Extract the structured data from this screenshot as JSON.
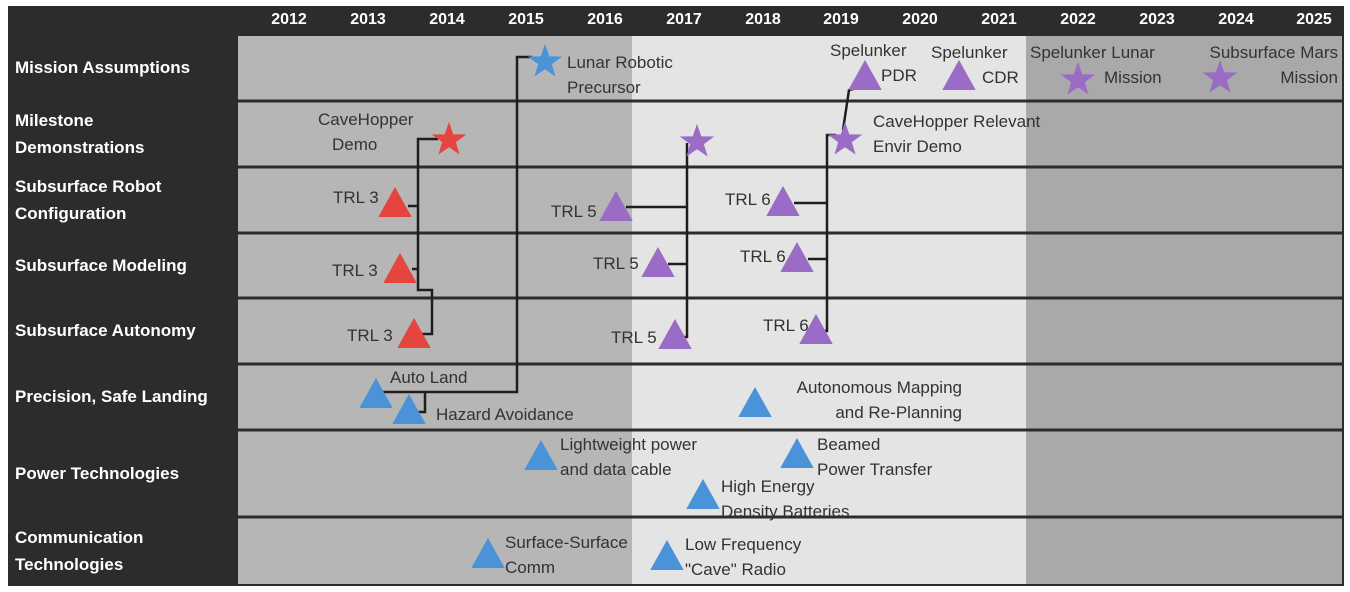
{
  "years": [
    "2012",
    "2013",
    "2014",
    "2015",
    "2016",
    "2017",
    "2018",
    "2019",
    "2020",
    "2021",
    "2022",
    "2023",
    "2024",
    "2025"
  ],
  "rows": [
    {
      "label_lines": [
        "Mission Assumptions"
      ]
    },
    {
      "label_lines": [
        "Milestone",
        "Demonstrations"
      ]
    },
    {
      "label_lines": [
        "Subsurface Robot",
        "Configuration"
      ]
    },
    {
      "label_lines": [
        "Subsurface Modeling"
      ]
    },
    {
      "label_lines": [
        "Subsurface Autonomy"
      ]
    },
    {
      "label_lines": [
        "Precision, Safe Landing"
      ]
    },
    {
      "label_lines": [
        "Power Technologies"
      ]
    },
    {
      "label_lines": [
        "Communication",
        "Technologies"
      ]
    }
  ],
  "mission": {
    "lunar_precursor": [
      "Lunar Robotic",
      "Precursor"
    ],
    "spelunker_pdr": [
      "Spelunker",
      "PDR"
    ],
    "spelunker_cdr": [
      "Spelunker",
      "CDR"
    ],
    "spelunker_lunar": [
      "Spelunker Lunar",
      "Mission"
    ],
    "subsurface_mars": [
      "Subsurface Mars",
      "Mission"
    ]
  },
  "milestones": {
    "cavehopper_demo": [
      "CaveHopper",
      "Demo"
    ],
    "cavehopper_relevant": [
      "CaveHopper Relevant",
      "Envir Demo"
    ]
  },
  "trl": {
    "config": [
      "TRL 3",
      "TRL 5",
      "TRL 6"
    ],
    "modeling": [
      "TRL 3",
      "TRL 5",
      "TRL 6"
    ],
    "autonomy": [
      "TRL 3",
      "TRL 5",
      "TRL 6"
    ]
  },
  "landing": {
    "auto_land": "Auto Land",
    "hazard": "Hazard Avoidance",
    "mapping": [
      "Autonomous Mapping",
      "and Re-Planning"
    ]
  },
  "power": {
    "cable": [
      "Lightweight power",
      "and data cable"
    ],
    "beamed": [
      "Beamed",
      "Power Transfer"
    ],
    "batteries": [
      "High Energy",
      "Density Batteries"
    ]
  },
  "comm": {
    "surface": [
      "Surface-Surface",
      "Comm"
    ],
    "radio": [
      "Low Frequency",
      "\"Cave\" Radio"
    ]
  },
  "colors": {
    "red": "#e5453f",
    "purple": "#9a6cc6",
    "blue": "#4b93d8",
    "line": "#1e1e1e"
  }
}
